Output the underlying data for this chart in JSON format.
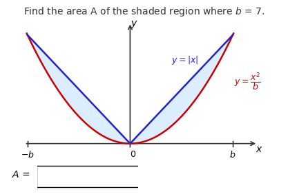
{
  "title": "Find the area A of the shaded region where $b$ = 7.",
  "title_fontsize": 10,
  "b": 7,
  "background_color": "#ffffff",
  "abs_color": "#2222cc",
  "parabola_color": "#cc0000",
  "shade_color": "#bbddff",
  "shade_alpha": 0.5,
  "xlabel_text": "x",
  "ylabel_text": "y",
  "label_abs": "$y = |x|$",
  "label_para": "$y=\\dfrac{x^2}{b}$"
}
